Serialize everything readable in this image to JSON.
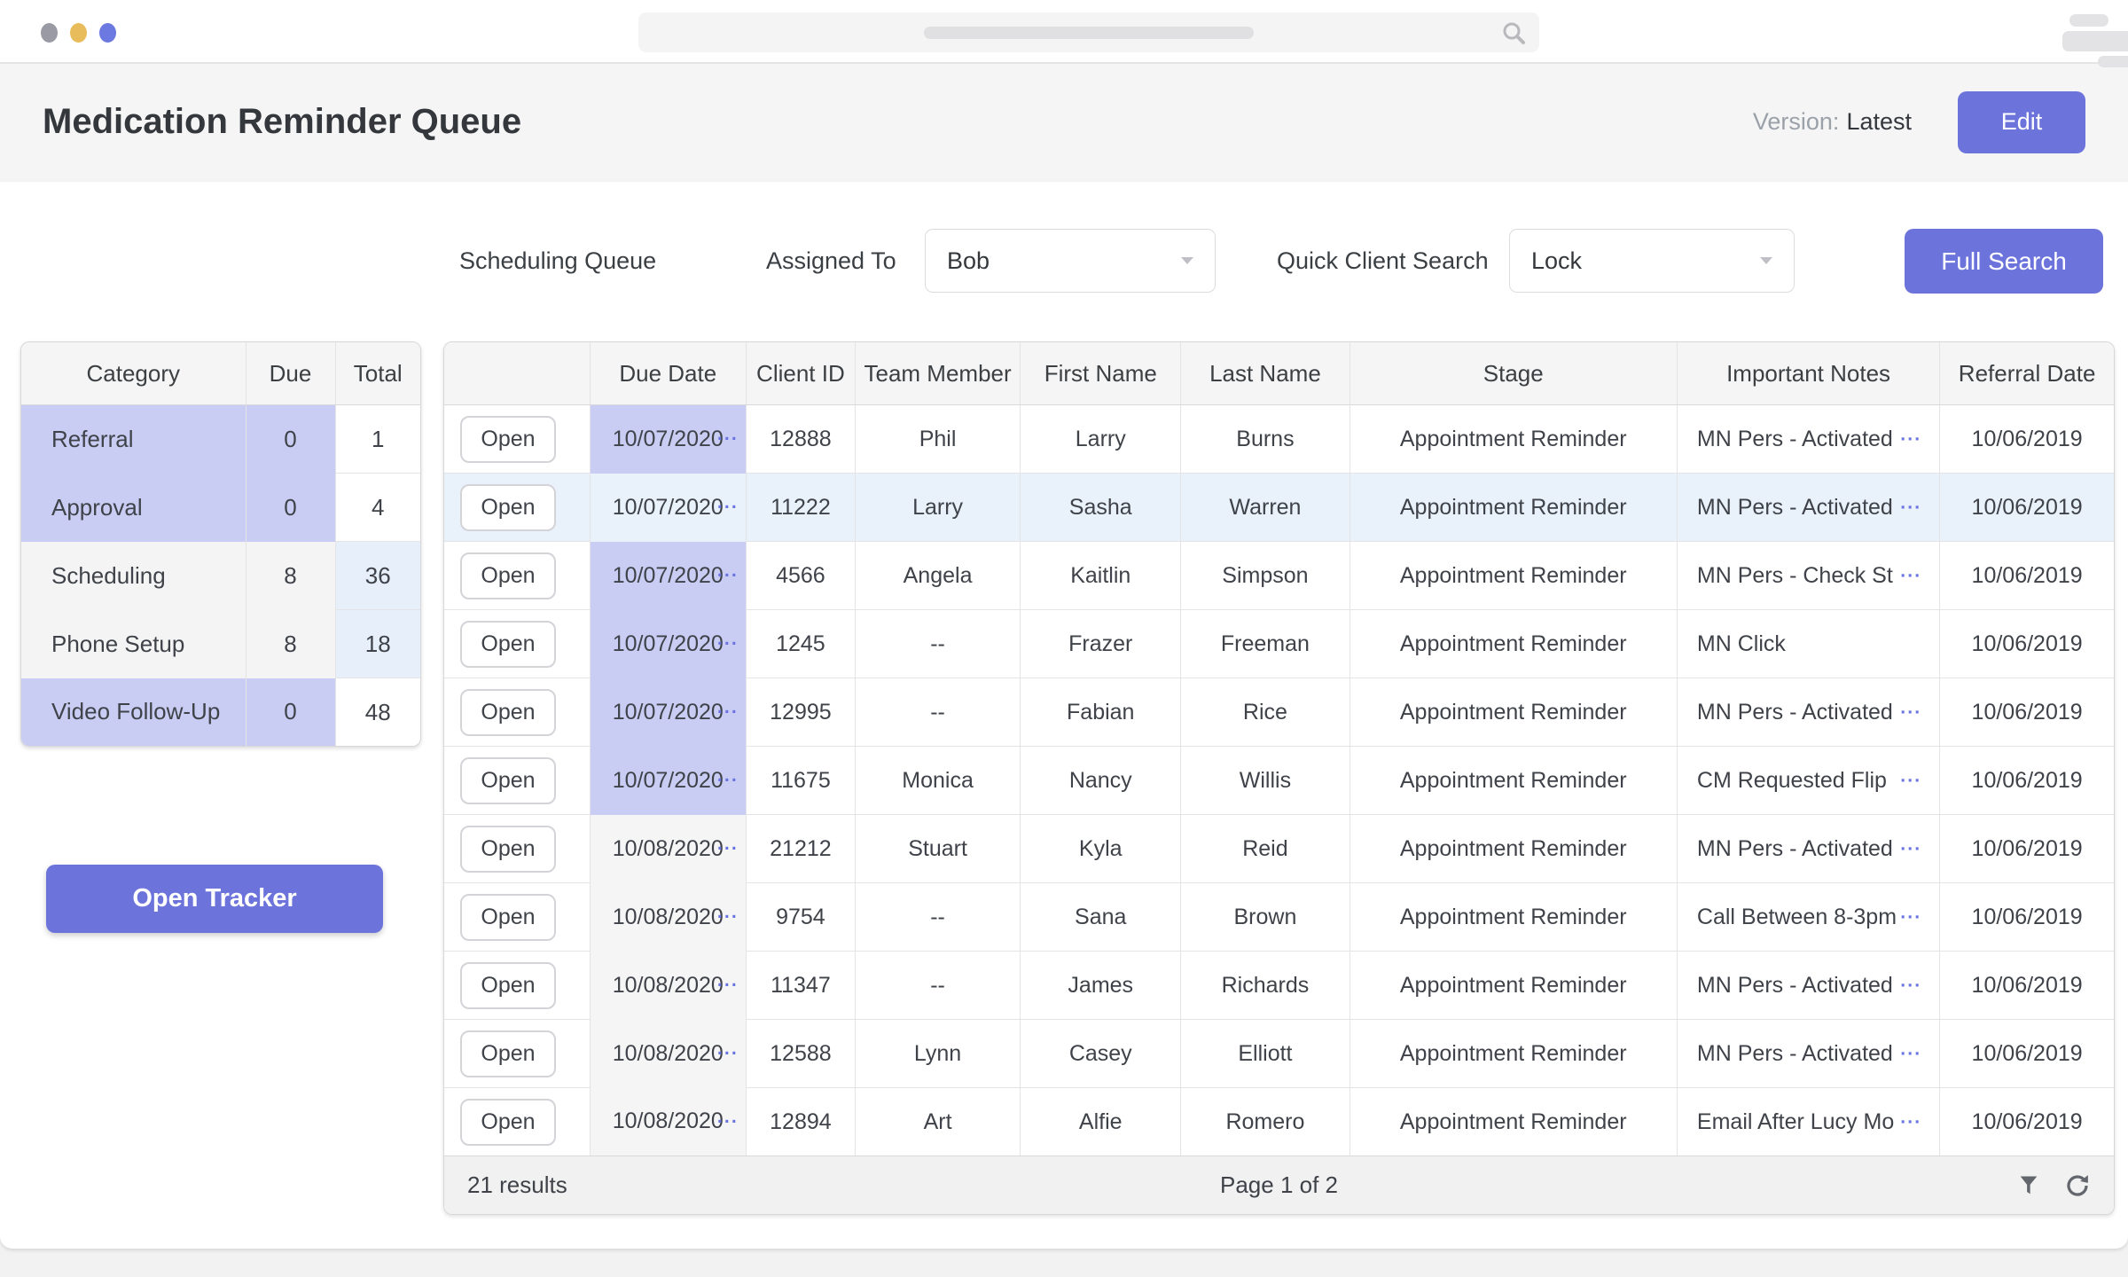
{
  "colors": {
    "accent": "#6c74dc",
    "due_purple": "#c9cdf4",
    "due_gray": "#f5f5f6",
    "row_highlight": "#e9f1fa",
    "total_blue": "#e7effb",
    "traffic_lights": [
      "#9a9aa5",
      "#e8bc5a",
      "#6b79e0"
    ]
  },
  "header": {
    "title": "Medication Reminder Queue",
    "version_label": "Version:",
    "version_value": "Latest",
    "edit_button": "Edit"
  },
  "toolbar": {
    "queue_label": "Scheduling Queue",
    "assigned_to_label": "Assigned To",
    "assigned_to_value": "Bob",
    "quick_search_label": "Quick Client Search",
    "quick_search_value": "Lock",
    "full_search_button": "Full Search"
  },
  "summary_table": {
    "headers": [
      "Category",
      "Due",
      "Total"
    ],
    "rows": [
      {
        "category": "Referral",
        "due": "0",
        "total": "1",
        "variant": "purple"
      },
      {
        "category": "Approval",
        "due": "0",
        "total": "4",
        "variant": "purple"
      },
      {
        "category": "Scheduling",
        "due": "8",
        "total": "36",
        "variant": "gray"
      },
      {
        "category": "Phone Setup",
        "due": "8",
        "total": "18",
        "variant": "gray"
      },
      {
        "category": "Video Follow-Up",
        "due": "0",
        "total": "48",
        "variant": "purple"
      }
    ]
  },
  "open_tracker_button": "Open Tracker",
  "main_table": {
    "headers": [
      "",
      "Due Date",
      "Client ID",
      "Team Member",
      "First Name",
      "Last Name",
      "Stage",
      "Important Notes",
      "Referral Date"
    ],
    "open_button_label": "Open",
    "more_indicator": "···",
    "rows": [
      {
        "due_date": "10/07/2020",
        "due_variant": "purple",
        "due_more": true,
        "client_id": "12888",
        "team_member": "Phil",
        "first_name": "Larry",
        "last_name": "Burns",
        "stage": "Appointment Reminder",
        "notes": "MN Pers - Activated",
        "notes_more": true,
        "referral_date": "10/06/2019",
        "highlighted": false
      },
      {
        "due_date": "10/07/2020",
        "due_variant": "purple",
        "due_more": true,
        "client_id": "11222",
        "team_member": "Larry",
        "first_name": "Sasha",
        "last_name": "Warren",
        "stage": "Appointment Reminder",
        "notes": "MN Pers - Activated",
        "notes_more": true,
        "referral_date": "10/06/2019",
        "highlighted": true
      },
      {
        "due_date": "10/07/2020",
        "due_variant": "purple",
        "due_more": true,
        "client_id": "4566",
        "team_member": "Angela",
        "first_name": "Kaitlin",
        "last_name": "Simpson",
        "stage": "Appointment Reminder",
        "notes": "MN Pers - Check St",
        "notes_more": true,
        "referral_date": "10/06/2019",
        "highlighted": false
      },
      {
        "due_date": "10/07/2020",
        "due_variant": "purple",
        "due_more": true,
        "client_id": "1245",
        "team_member": "--",
        "first_name": "Frazer",
        "last_name": "Freeman",
        "stage": "Appointment Reminder",
        "notes": "MN Click",
        "notes_more": false,
        "referral_date": "10/06/2019",
        "highlighted": false
      },
      {
        "due_date": "10/07/2020",
        "due_variant": "purple",
        "due_more": true,
        "client_id": "12995",
        "team_member": "--",
        "first_name": "Fabian",
        "last_name": "Rice",
        "stage": "Appointment Reminder",
        "notes": "MN Pers - Activated",
        "notes_more": true,
        "referral_date": "10/06/2019",
        "highlighted": false
      },
      {
        "due_date": "10/07/2020",
        "due_variant": "purple",
        "due_more": true,
        "client_id": "11675",
        "team_member": "Monica",
        "first_name": "Nancy",
        "last_name": "Willis",
        "stage": "Appointment Reminder",
        "notes": "CM Requested Flip",
        "notes_more": true,
        "referral_date": "10/06/2019",
        "highlighted": false
      },
      {
        "due_date": "10/08/2020",
        "due_variant": "gray",
        "due_more": true,
        "client_id": "21212",
        "team_member": "Stuart",
        "first_name": "Kyla",
        "last_name": "Reid",
        "stage": "Appointment Reminder",
        "notes": "MN Pers - Activated",
        "notes_more": true,
        "referral_date": "10/06/2019",
        "highlighted": false
      },
      {
        "due_date": "10/08/2020",
        "due_variant": "gray",
        "due_more": true,
        "client_id": "9754",
        "team_member": "--",
        "first_name": "Sana",
        "last_name": "Brown",
        "stage": "Appointment Reminder",
        "notes": "Call Between 8-3pm",
        "notes_more": true,
        "referral_date": "10/06/2019",
        "highlighted": false
      },
      {
        "due_date": "10/08/2020",
        "due_variant": "gray",
        "due_more": true,
        "client_id": "11347",
        "team_member": "--",
        "first_name": "James",
        "last_name": "Richards",
        "stage": "Appointment Reminder",
        "notes": "MN Pers - Activated",
        "notes_more": true,
        "referral_date": "10/06/2019",
        "highlighted": false
      },
      {
        "due_date": "10/08/2020",
        "due_variant": "gray",
        "due_more": true,
        "client_id": "12588",
        "team_member": "Lynn",
        "first_name": "Casey",
        "last_name": "Elliott",
        "stage": "Appointment Reminder",
        "notes": "MN Pers - Activated",
        "notes_more": true,
        "referral_date": "10/06/2019",
        "highlighted": false
      },
      {
        "due_date": "10/08/2020",
        "due_variant": "gray",
        "due_more": true,
        "client_id": "12894",
        "team_member": "Art",
        "first_name": "Alfie",
        "last_name": "Romero",
        "stage": "Appointment Reminder",
        "notes": "Email After Lucy Mo",
        "notes_more": true,
        "referral_date": "10/06/2019",
        "highlighted": false
      }
    ],
    "footer": {
      "results": "21 results",
      "page": "Page 1 of 2"
    }
  }
}
